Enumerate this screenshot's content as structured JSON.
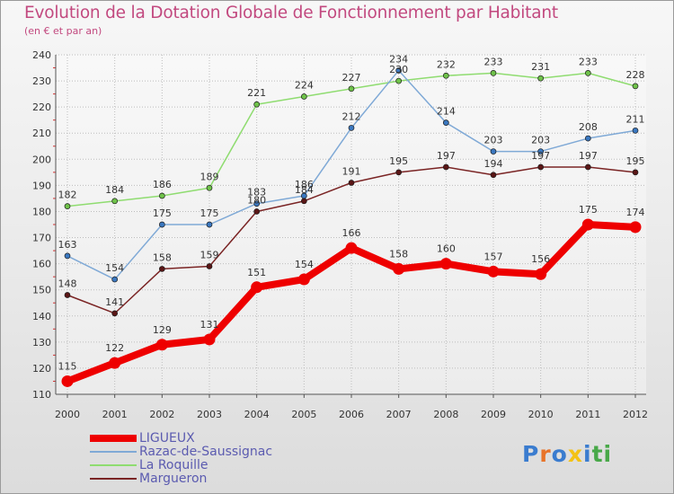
{
  "title": "Evolution de la Dotation Globale de Fonctionnement par Habitant",
  "subtitle": "(en € et par an)",
  "logo_text": "Proxiti",
  "colors": {
    "title": "#c2497f",
    "legend_text": "#5b5bb0",
    "logo": [
      "#3a7ccf",
      "#e8742a",
      "#3a7ccf",
      "#f3c215",
      "#3a7ccf",
      "#48a848",
      "#48a848"
    ]
  },
  "chart_data": {
    "type": "line",
    "categories": [
      "2000",
      "2001",
      "2002",
      "2003",
      "2004",
      "2005",
      "2006",
      "2007",
      "2008",
      "2009",
      "2010",
      "2011",
      "2012"
    ],
    "ylim": [
      110,
      240
    ],
    "yticks": [
      "110",
      "120",
      "130",
      "140",
      "150",
      "160",
      "170",
      "180",
      "190",
      "200",
      "210",
      "220",
      "230",
      "240"
    ],
    "grid": true,
    "legend_position": "bottom-left",
    "series": [
      {
        "name": "Margueron",
        "color": "#7a2424",
        "marker": "#5a1616",
        "thick": false,
        "values": [
          148,
          141,
          158,
          159,
          180,
          184,
          191,
          195,
          197,
          194,
          197,
          197,
          195
        ],
        "labels": [
          "148",
          "141",
          "158",
          "159",
          "180",
          "184",
          "191",
          "195",
          "197",
          "194",
          "197",
          "197",
          "195"
        ]
      },
      {
        "name": "La Roquille",
        "color": "#8fdc70",
        "marker": "#6fc24a",
        "thick": false,
        "values": [
          182,
          184,
          186,
          189,
          221,
          224,
          227,
          230,
          232,
          233,
          231,
          233,
          228
        ],
        "labels": [
          "182",
          "184",
          "186",
          "189",
          "221",
          "224",
          "227",
          "230",
          "232",
          "233",
          "231",
          "233",
          "228"
        ]
      },
      {
        "name": "Razac-de-Saussignac",
        "color": "#7fa9d6",
        "marker": "#3b78c0",
        "thick": false,
        "values": [
          163,
          154,
          175,
          175,
          183,
          186,
          212,
          234,
          214,
          203,
          203,
          208,
          211
        ],
        "labels": [
          "163",
          "154",
          "175",
          "175",
          "183",
          "186",
          "212",
          "234",
          "214",
          "203",
          "203",
          "208",
          "211"
        ]
      },
      {
        "name": "LIGUEUX",
        "color": "#ee0000",
        "marker": "#ee0000",
        "thick": true,
        "values": [
          115,
          122,
          129,
          131,
          151,
          154,
          166,
          158,
          160,
          157,
          156,
          175,
          174
        ],
        "labels": [
          "115",
          "122",
          "129",
          "131",
          "151",
          "154",
          "166",
          "158",
          "160",
          "157",
          "156",
          "175",
          "174"
        ]
      }
    ],
    "legend_order": [
      "LIGUEUX",
      "Razac-de-Saussignac",
      "La Roquille",
      "Margueron"
    ]
  }
}
